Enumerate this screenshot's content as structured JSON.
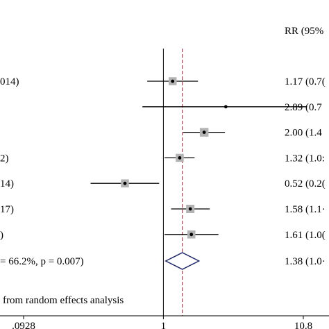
{
  "chart_data": {
    "type": "forest",
    "header_right": "RR (95%",
    "studies": [
      {
        "label": "014)",
        "rr": 1.17,
        "lo": 0.76,
        "hi": 1.8,
        "weight": 0.55,
        "ci_text": "1.17 (0.7("
      },
      {
        "label": "",
        "rr": 2.89,
        "lo": 0.7,
        "hi": 11.5,
        "weight": 0.0,
        "ci_text": "2.89 (0.7"
      },
      {
        "label": "",
        "rr": 2.0,
        "lo": 1.4,
        "hi": 2.85,
        "weight": 0.65,
        "ci_text": "2.00 (1.4"
      },
      {
        "label": "2)",
        "rr": 1.32,
        "lo": 1.02,
        "hi": 1.7,
        "weight": 0.55,
        "ci_text": "1.32 (1.0:"
      },
      {
        "label": "14)",
        "rr": 0.52,
        "lo": 0.29,
        "hi": 0.93,
        "weight": 0.55,
        "ci_text": "0.52 (0.2("
      },
      {
        "label": "17)",
        "rr": 1.58,
        "lo": 1.14,
        "hi": 2.2,
        "weight": 0.6,
        "ci_text": "1.58 (1.1·"
      },
      {
        "label": ")",
        "rr": 1.61,
        "lo": 1.02,
        "hi": 2.55,
        "weight": 0.55,
        "ci_text": "1.61 (1.0("
      }
    ],
    "overall": {
      "label": "= 66.2%, p = 0.007)",
      "rr": 1.38,
      "lo": 1.04,
      "hi": 1.83,
      "ci_text": "1.38 (1.0·"
    },
    "footnote": "from random effects analysis",
    "x_scale": "log",
    "x_range": [
      0.0928,
      10.8
    ],
    "x_ticks": [
      {
        "value": 0.0928,
        "label": ".0928"
      },
      {
        "value": 1,
        "label": "1"
      },
      {
        "value": 10.8,
        "label": "10.8"
      }
    ],
    "colors": {
      "box": "#b3b3b3",
      "diamond": "#1f2a6b",
      "ref_dashed": "#b03a48",
      "line": "#000000"
    }
  }
}
